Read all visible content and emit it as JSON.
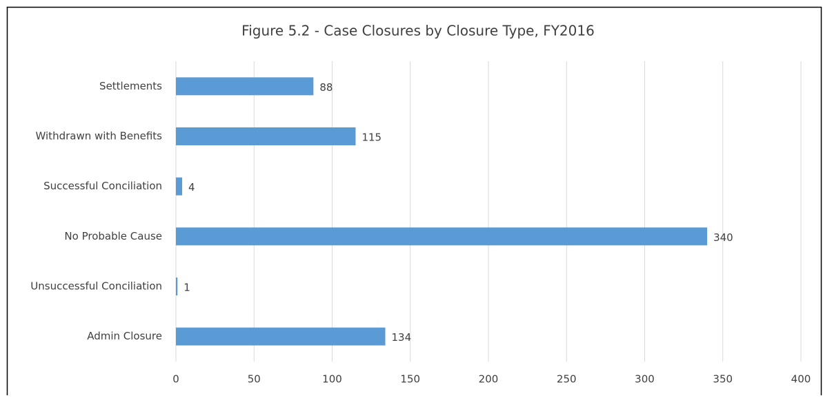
{
  "chart_data": {
    "type": "hbar",
    "title": "Figure 5.2 - Case Closures by Closure Type, FY2016",
    "categories": [
      "Settlements",
      "Withdrawn with Benefits",
      "Successful Conciliation",
      "No Probable Cause",
      "Unsuccessful Conciliation",
      "Admin Closure"
    ],
    "values": [
      88,
      115,
      4,
      340,
      1,
      134
    ],
    "color": "#5b9bd5",
    "xlim": [
      0,
      400
    ],
    "xticks": [
      0,
      50,
      100,
      150,
      200,
      250,
      300,
      350,
      400
    ],
    "grid": true
  }
}
